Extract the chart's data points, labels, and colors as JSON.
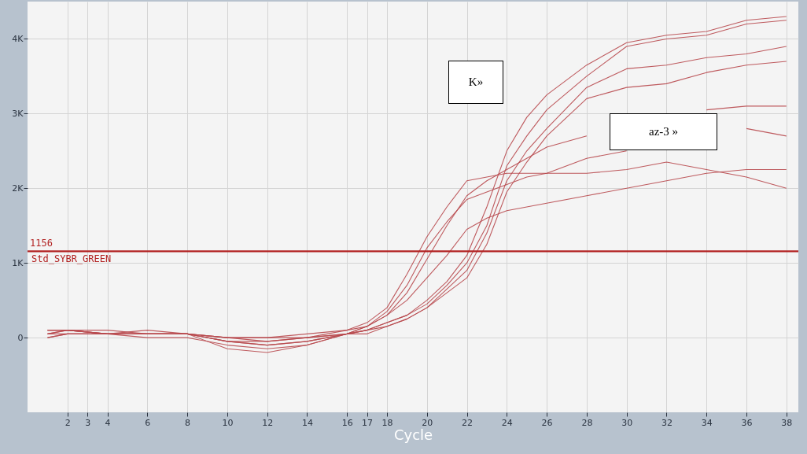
{
  "chart_data": {
    "type": "line",
    "xlabel": "Cycle",
    "x": [
      1,
      2,
      4,
      6,
      8,
      10,
      12,
      14,
      16,
      17,
      18,
      19,
      20,
      21,
      22,
      23,
      24,
      25,
      26,
      28,
      30,
      32,
      34,
      36,
      38
    ],
    "series": [
      {
        "color": "#b8494e",
        "values": [
          50,
          100,
          50,
          50,
          50,
          -50,
          -50,
          0,
          50,
          100,
          200,
          300,
          500,
          750,
          1100,
          1750,
          2500,
          2950,
          3250,
          3650,
          3950,
          4050,
          4100,
          4250,
          4300
        ]
      },
      {
        "color": "#b8494e",
        "values": [
          0,
          50,
          50,
          50,
          50,
          0,
          -50,
          0,
          50,
          100,
          200,
          300,
          450,
          700,
          1000,
          1500,
          2300,
          2700,
          3050,
          3500,
          3900,
          4000,
          4050,
          4200,
          4250
        ]
      },
      {
        "color": "#b8494e",
        "values": [
          100,
          100,
          50,
          50,
          50,
          -50,
          -100,
          -50,
          50,
          100,
          150,
          250,
          400,
          650,
          900,
          1400,
          2100,
          2500,
          2800,
          3350,
          3600,
          3650,
          3750,
          3800,
          3900
        ]
      },
      {
        "color": "#b8494e",
        "values": [
          0,
          50,
          50,
          0,
          0,
          -100,
          -150,
          -100,
          50,
          50,
          150,
          250,
          400,
          600,
          800,
          1250,
          1950,
          2350,
          2700,
          3200,
          3350,
          3400,
          3550,
          3650,
          3700
        ]
      },
      {
        "color": "#b8494e",
        "values": [
          100,
          100,
          100,
          50,
          50,
          0,
          0,
          0,
          100,
          150,
          300,
          600,
          1050,
          1500,
          1900,
          2100,
          2250,
          2400,
          2550,
          2700,
          null,
          null,
          3050,
          3100,
          3100
        ]
      },
      {
        "color": "#b8494e",
        "values": [
          50,
          50,
          50,
          50,
          50,
          -50,
          -100,
          -50,
          50,
          150,
          350,
          700,
          1200,
          1550,
          1850,
          1950,
          2050,
          2150,
          2200,
          2400,
          2500,
          null,
          null,
          2800,
          2700
        ]
      },
      {
        "color": "#b8494e",
        "values": [
          100,
          100,
          50,
          50,
          50,
          -150,
          -200,
          -100,
          50,
          150,
          300,
          500,
          800,
          1100,
          1450,
          1600,
          1700,
          1750,
          1800,
          1900,
          2000,
          2100,
          2200,
          2250,
          2250
        ]
      },
      {
        "color": "#b8494e",
        "values": [
          50,
          100,
          50,
          100,
          50,
          0,
          0,
          50,
          100,
          200,
          400,
          850,
          1350,
          1750,
          2100,
          2150,
          2200,
          2200,
          2200,
          2200,
          2250,
          2350,
          2250,
          2150,
          2000
        ]
      }
    ],
    "xlim": [
      0,
      38.6
    ],
    "xticks": [
      2,
      3,
      4,
      6,
      8,
      10,
      12,
      14,
      16,
      17,
      18,
      20,
      22,
      24,
      26,
      28,
      30,
      32,
      34,
      36,
      38
    ],
    "ylim": [
      -1000,
      4500
    ],
    "yticks": [
      0,
      {
        "value": 1000,
        "label": "1K"
      },
      {
        "value": 2000,
        "label": "2K"
      },
      {
        "value": 3000,
        "label": "3K"
      },
      {
        "value": 4000,
        "label": "4K"
      }
    ],
    "grid": true,
    "ref_lines": [
      {
        "axis": "y",
        "value": 1156,
        "label": "1156",
        "color": "#b22222"
      }
    ],
    "annotations": [
      {
        "text": "Std_SYBR_GREEN",
        "x": 0.2,
        "y": 1156
      },
      "K»",
      "az-3 »"
    ]
  }
}
